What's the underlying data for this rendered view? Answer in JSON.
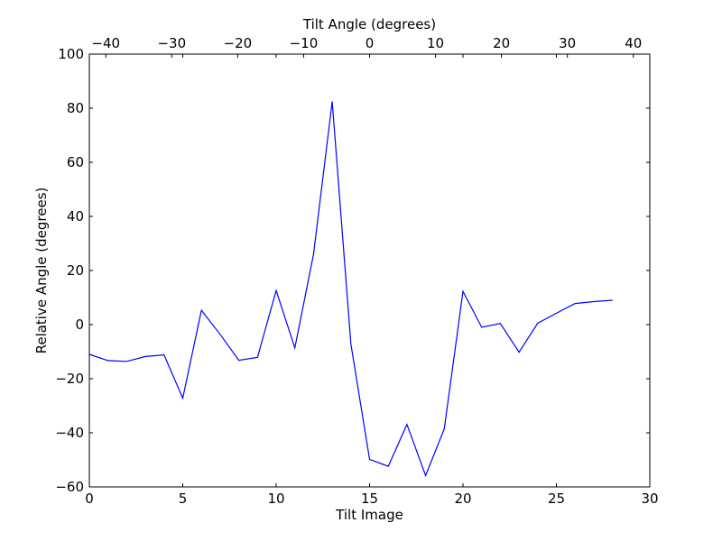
{
  "chart_data": {
    "type": "line",
    "xlabel": "Tilt Image",
    "ylabel": "Relative Angle (degrees)",
    "x2label": "Tilt Angle (degrees)",
    "xlim": [
      0,
      30
    ],
    "ylim": [
      -60,
      100
    ],
    "x2lim": [
      -42.5,
      42.5
    ],
    "xticks": [
      0,
      5,
      10,
      15,
      20,
      25,
      30
    ],
    "yticks": [
      -60,
      -40,
      -20,
      0,
      20,
      40,
      60,
      80,
      100
    ],
    "x2ticks": [
      -40,
      -30,
      -20,
      -10,
      0,
      10,
      20,
      30,
      40
    ],
    "grid": false,
    "line_color": "#0000ff",
    "series": [
      {
        "x": [
          0,
          1,
          2,
          3,
          4,
          5,
          6,
          7,
          8,
          9,
          10,
          11,
          12,
          13,
          14,
          15,
          16,
          17,
          18,
          19,
          20,
          21,
          22,
          23,
          24,
          25,
          26,
          27,
          28
        ],
        "values": [
          -11,
          -13.3,
          -13.6,
          -11.8,
          -11.2,
          -27.2,
          5.3,
          -3.6,
          -13.2,
          -12.1,
          12.6,
          -8.6,
          26,
          82.5,
          -7.2,
          -49.8,
          -52.4,
          -36.9,
          -55.8,
          -38.5,
          12.3,
          -1,
          0.4,
          -10.2,
          0.5,
          4.2,
          7.8,
          8.5,
          9
        ]
      }
    ]
  }
}
